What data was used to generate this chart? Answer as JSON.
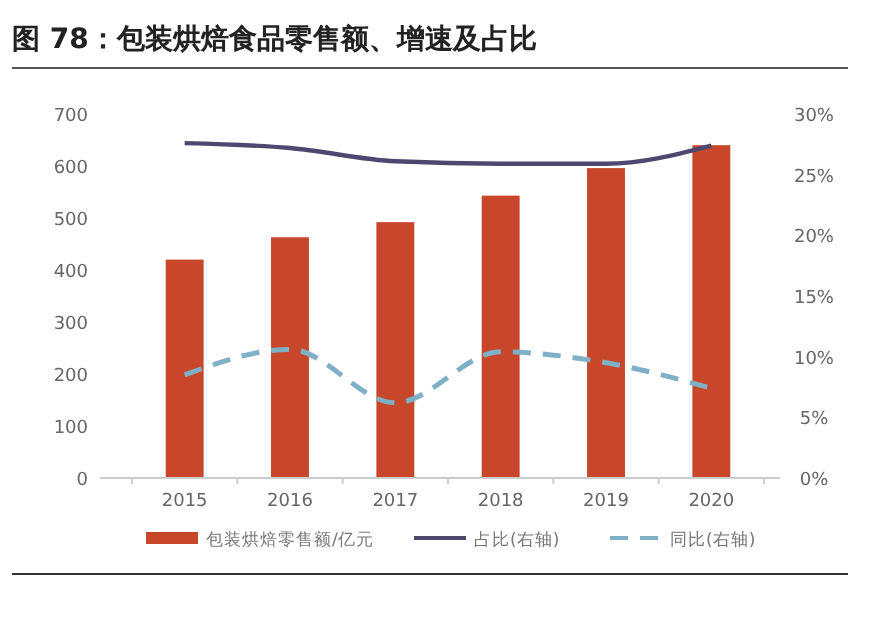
{
  "chart_data": {
    "type": "bar",
    "title": "图 78：包装烘焙食品零售额、增速及占比",
    "categories": [
      "2015",
      "2016",
      "2017",
      "2018",
      "2019",
      "2020"
    ],
    "series": [
      {
        "name": "包装烘焙零售额/亿元",
        "color": "#c8472a",
        "values": [
          420,
          463,
          492,
          543,
          596,
          640
        ]
      },
      {
        "name": "占比(右轴)",
        "type": "line",
        "axis": "y2",
        "color": "#4e4870",
        "line_style": "solid",
        "values": [
          27.6,
          27.2,
          26.1,
          25.9,
          25.9,
          27.4
        ]
      },
      {
        "name": "同比(右轴)",
        "type": "line",
        "axis": "y2",
        "color": "#7fb0c8",
        "line_style": "dashed",
        "values": [
          8.5,
          10.6,
          6.2,
          10.4,
          9.5,
          7.4
        ]
      }
    ],
    "ylim": [
      0,
      700
    ],
    "yticks": [
      0,
      100,
      200,
      300,
      400,
      500,
      600,
      700
    ],
    "y2lim": [
      0,
      30
    ],
    "y2ticks": [
      {
        "value": 0,
        "label": "0%"
      },
      {
        "value": 5,
        "label": "5%"
      },
      {
        "value": 10,
        "label": "10%"
      },
      {
        "value": 15,
        "label": "15%"
      },
      {
        "value": 20,
        "label": "20%"
      },
      {
        "value": 25,
        "label": "25%"
      },
      {
        "value": 30,
        "label": "30%"
      }
    ],
    "legend": "bottom",
    "grid": false
  }
}
